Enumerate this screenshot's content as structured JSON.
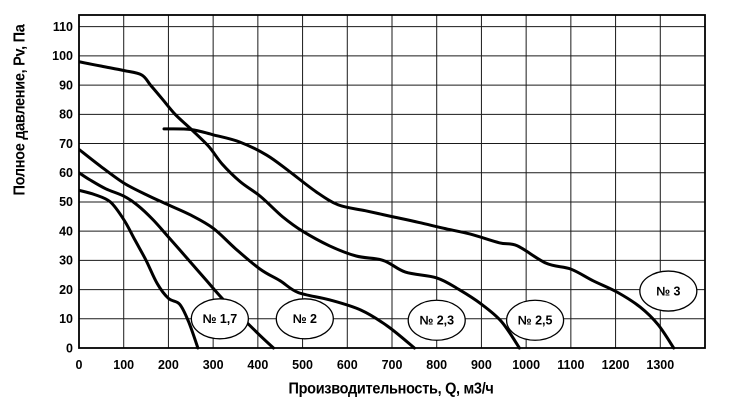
{
  "chart_data": {
    "type": "line",
    "title": "",
    "xlabel": "Производительность, Q, м3/ч",
    "ylabel": "Полное давление, Pv, Па",
    "xlim": [
      0,
      1400
    ],
    "ylim": [
      0,
      114
    ],
    "grid": true,
    "x_tick_step": 100,
    "y_tick_step": 10,
    "x_ticks": [
      0,
      100,
      200,
      300,
      400,
      500,
      600,
      700,
      800,
      900,
      1000,
      1100,
      1200,
      1300
    ],
    "y_ticks": [
      0,
      10,
      20,
      30,
      40,
      50,
      60,
      70,
      80,
      90,
      100,
      110
    ],
    "line_color": "#000000",
    "grid_color": "#1a1a1a",
    "background": "#ffffff",
    "legend_position": "none",
    "series": [
      {
        "name": "№ 1,7",
        "points": [
          [
            0,
            54
          ],
          [
            35,
            52.5
          ],
          [
            70,
            50
          ],
          [
            100,
            44
          ],
          [
            125,
            37
          ],
          [
            150,
            30
          ],
          [
            175,
            22
          ],
          [
            200,
            17
          ],
          [
            225,
            15
          ],
          [
            245,
            9
          ],
          [
            266,
            0
          ]
        ]
      },
      {
        "name": "№ 2",
        "points": [
          [
            0,
            60
          ],
          [
            25,
            57.5
          ],
          [
            60,
            54.5
          ],
          [
            100,
            52
          ],
          [
            130,
            49
          ],
          [
            165,
            44
          ],
          [
            200,
            38
          ],
          [
            240,
            31
          ],
          [
            280,
            24
          ],
          [
            320,
            17
          ],
          [
            360,
            11
          ],
          [
            400,
            5
          ],
          [
            435,
            0
          ]
        ]
      },
      {
        "name": "№ 2,3",
        "points": [
          [
            0,
            68
          ],
          [
            50,
            62
          ],
          [
            100,
            56.5
          ],
          [
            150,
            52.5
          ],
          [
            200,
            49
          ],
          [
            250,
            45.5
          ],
          [
            300,
            41
          ],
          [
            350,
            34
          ],
          [
            405,
            27
          ],
          [
            450,
            23
          ],
          [
            490,
            19
          ],
          [
            560,
            16.5
          ],
          [
            630,
            13
          ],
          [
            690,
            7.5
          ],
          [
            750,
            0
          ]
        ]
      },
      {
        "name": "№ 2,5",
        "points": [
          [
            0,
            98
          ],
          [
            50,
            96.5
          ],
          [
            100,
            95
          ],
          [
            140,
            93.5
          ],
          [
            160,
            90
          ],
          [
            185,
            85.5
          ],
          [
            215,
            80
          ],
          [
            250,
            75
          ],
          [
            290,
            69
          ],
          [
            320,
            63
          ],
          [
            360,
            57
          ],
          [
            405,
            52
          ],
          [
            455,
            45
          ],
          [
            500,
            40
          ],
          [
            560,
            35
          ],
          [
            620,
            31.5
          ],
          [
            680,
            30
          ],
          [
            730,
            26
          ],
          [
            800,
            24
          ],
          [
            850,
            20
          ],
          [
            900,
            15
          ],
          [
            945,
            9
          ],
          [
            985,
            0
          ]
        ]
      },
      {
        "name": "№ 3",
        "points": [
          [
            190,
            75
          ],
          [
            250,
            74.8
          ],
          [
            300,
            73
          ],
          [
            360,
            70.5
          ],
          [
            420,
            66
          ],
          [
            470,
            60.5
          ],
          [
            530,
            53.5
          ],
          [
            580,
            49
          ],
          [
            640,
            47
          ],
          [
            700,
            45
          ],
          [
            760,
            43
          ],
          [
            815,
            41
          ],
          [
            875,
            39
          ],
          [
            940,
            36
          ],
          [
            980,
            35
          ],
          [
            1045,
            29
          ],
          [
            1100,
            27
          ],
          [
            1150,
            23
          ],
          [
            1205,
            19
          ],
          [
            1255,
            14
          ],
          [
            1295,
            8
          ],
          [
            1330,
            0
          ]
        ]
      }
    ],
    "labels": [
      {
        "text": "№ 1,7",
        "q": 315,
        "p": 10
      },
      {
        "text": "№ 2",
        "q": 505,
        "p": 10
      },
      {
        "text": "№ 2,3",
        "q": 800,
        "p": 9.5
      },
      {
        "text": "№ 2,5",
        "q": 1020,
        "p": 9.5
      },
      {
        "text": "№ 3",
        "q": 1318,
        "p": 19.5
      }
    ]
  }
}
